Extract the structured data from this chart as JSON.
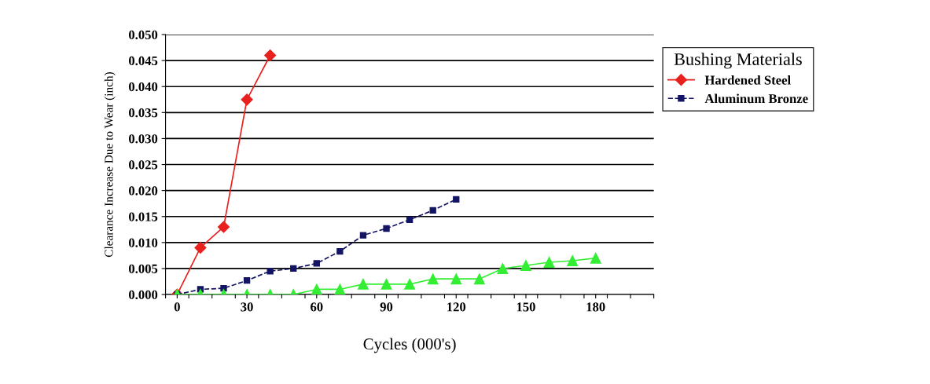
{
  "chart_data": {
    "type": "line",
    "xlabel": "Cycles (000's)",
    "ylabel": "Clearance Increase Due to Wear (inch)",
    "legend_title": "Bushing Materials",
    "xlim": [
      -5,
      205
    ],
    "xticks": [
      {
        "value": -5,
        "label": null
      },
      {
        "value": 0,
        "label": "0"
      },
      {
        "value": 5,
        "label": null
      },
      {
        "value": 15,
        "label": null
      },
      {
        "value": 25,
        "label": null
      },
      {
        "value": 30,
        "label": "30"
      },
      {
        "value": 35,
        "label": null
      },
      {
        "value": 45,
        "label": null
      },
      {
        "value": 55,
        "label": null
      },
      {
        "value": 60,
        "label": "60"
      },
      {
        "value": 65,
        "label": null
      },
      {
        "value": 75,
        "label": null
      },
      {
        "value": 85,
        "label": null
      },
      {
        "value": 90,
        "label": "90"
      },
      {
        "value": 95,
        "label": null
      },
      {
        "value": 105,
        "label": null
      },
      {
        "value": 115,
        "label": null
      },
      {
        "value": 120,
        "label": "120"
      },
      {
        "value": 125,
        "label": null
      },
      {
        "value": 135,
        "label": null
      },
      {
        "value": 145,
        "label": null
      },
      {
        "value": 150,
        "label": "150"
      },
      {
        "value": 155,
        "label": null
      },
      {
        "value": 165,
        "label": null
      },
      {
        "value": 175,
        "label": null
      },
      {
        "value": 180,
        "label": "180"
      },
      {
        "value": 185,
        "label": null
      },
      {
        "value": 195,
        "label": null
      },
      {
        "value": 205,
        "label": null
      }
    ],
    "ylim": [
      0,
      0.05
    ],
    "yticks": [
      {
        "value": 0,
        "label": "0.000"
      },
      {
        "value": 0.005,
        "label": "0.005"
      },
      {
        "value": 0.01,
        "label": "0.010"
      },
      {
        "value": 0.015,
        "label": "0.015"
      },
      {
        "value": 0.02,
        "label": "0.020"
      },
      {
        "value": 0.025,
        "label": "0.025"
      },
      {
        "value": 0.03,
        "label": "0.030"
      },
      {
        "value": 0.035,
        "label": "0.035"
      },
      {
        "value": 0.04,
        "label": "0.040"
      },
      {
        "value": 0.045,
        "label": "0.045"
      },
      {
        "value": 0.05,
        "label": "0.050"
      }
    ],
    "grid": "y",
    "legend": "right",
    "series": [
      {
        "name": "Hardened Steel",
        "color": "#e8201e",
        "marker": "diamond",
        "line_style": "solid",
        "x": [
          0,
          10,
          20,
          30,
          40
        ],
        "values": [
          0,
          0.009,
          0.013,
          0.0375,
          0.046
        ]
      },
      {
        "name": "Aluminum Bronze",
        "color": "#141464",
        "marker": "square",
        "line_style": "dashed",
        "x": [
          0,
          10,
          20,
          30,
          40,
          50,
          60,
          70,
          80,
          90,
          100,
          110,
          120
        ],
        "values": [
          0,
          0.001,
          0.0012,
          0.0027,
          0.0045,
          0.005,
          0.006,
          0.0083,
          0.0114,
          0.0127,
          0.0144,
          0.0162,
          0.0183
        ]
      },
      {
        "color": "#33ee33",
        "marker": "triangle",
        "line_style": "solid",
        "x": [
          0,
          10,
          20,
          30,
          40,
          50,
          60,
          70,
          80,
          90,
          100,
          110,
          120,
          130,
          140,
          150,
          160,
          170,
          180
        ],
        "values": [
          0,
          0,
          0,
          0,
          0,
          0,
          0.001,
          0.001,
          0.002,
          0.002,
          0.002,
          0.003,
          0.003,
          0.003,
          0.005,
          0.0056,
          0.0062,
          0.0065,
          0.007
        ]
      }
    ]
  }
}
